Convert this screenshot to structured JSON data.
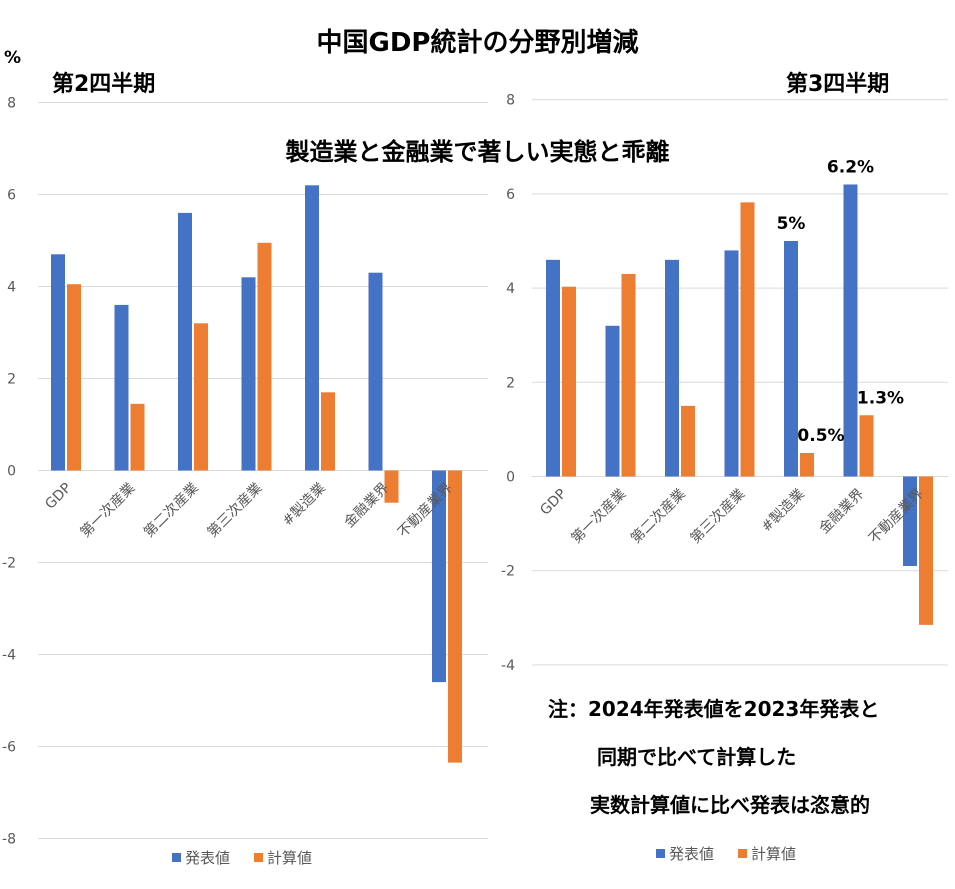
{
  "title": "中国GDP統計の分野別増減",
  "subtitle": "製造業と金融業で著しい実態と乖離",
  "unit": "%",
  "note": [
    "注：2024年発表値を2023年発表と",
    "同期で比べて計算した",
    "実数計算値に比べ発表は恣意的"
  ],
  "colors": {
    "reported": "#4472C4",
    "calculated": "#ED7D31",
    "grid": "#D9D9D9",
    "tick_text": "#595959"
  },
  "chart_data": [
    {
      "type": "bar",
      "title": "第2四半期",
      "categories": [
        "GDP",
        "第一次産業",
        "第二次産業",
        "第三次産業",
        "#製造業",
        "金融業界",
        "不動産業界"
      ],
      "series": [
        {
          "name": "発表値",
          "values": [
            4.7,
            3.6,
            5.6,
            4.2,
            6.2,
            4.3,
            -4.6
          ]
        },
        {
          "name": "計算値",
          "values": [
            4.05,
            1.45,
            3.2,
            4.95,
            1.7,
            -0.7,
            -6.35
          ]
        }
      ],
      "yticks": [
        "8",
        "6",
        "4",
        "2",
        "0",
        "-2",
        "-4",
        "-6",
        "-8"
      ],
      "ylim": [
        -8,
        8
      ],
      "grid": true,
      "legend_position": "bottom",
      "data_labels": []
    },
    {
      "type": "bar",
      "title": "第3四半期",
      "categories": [
        "GDP",
        "第一次産業",
        "第二次産業",
        "第三次産業",
        "#製造業",
        "金融業界",
        "不動産業界"
      ],
      "series": [
        {
          "name": "発表値",
          "values": [
            4.6,
            3.2,
            4.6,
            4.8,
            5.0,
            6.2,
            -1.9
          ]
        },
        {
          "name": "計算値",
          "values": [
            4.03,
            4.3,
            1.5,
            5.82,
            0.5,
            1.3,
            -3.15
          ]
        }
      ],
      "yticks": [
        "8",
        "6",
        "4",
        "2",
        "0",
        "-2",
        "-4"
      ],
      "ylim": [
        -4,
        8
      ],
      "grid": true,
      "legend_position": "bottom",
      "data_labels": [
        {
          "text": "5%",
          "category": 4,
          "series": 0
        },
        {
          "text": "0.5%",
          "category": 4,
          "series": 1
        },
        {
          "text": "6.2%",
          "category": 5,
          "series": 0
        },
        {
          "text": "1.3%",
          "category": 5,
          "series": 1
        }
      ]
    }
  ]
}
